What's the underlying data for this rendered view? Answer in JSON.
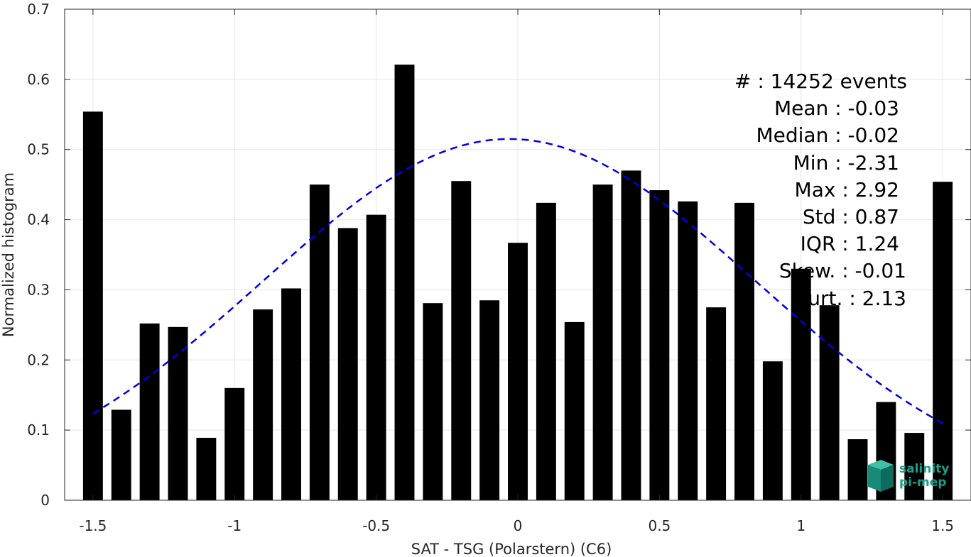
{
  "chart_data": {
    "type": "bar",
    "xlabel": "SAT - TSG (Polarstern) (C6)",
    "ylabel": "Normalized histogram",
    "xlim": [
      -1.6,
      1.6
    ],
    "ylim": [
      0,
      0.7
    ],
    "x_ticks": [
      -1.5,
      -1,
      -0.5,
      0,
      0.5,
      1,
      1.5
    ],
    "x_tick_labels": [
      "-1.5",
      "-1",
      "-0.5",
      "0",
      "0.5",
      "1",
      "1.5"
    ],
    "y_ticks": [
      0,
      0.1,
      0.2,
      0.3,
      0.4,
      0.5,
      0.6,
      0.7
    ],
    "y_tick_labels": [
      "0",
      "0.1",
      "0.2",
      "0.3",
      "0.4",
      "0.5",
      "0.6",
      "0.7"
    ],
    "grid": true,
    "bar_color": "#000000",
    "bar_width": 0.07,
    "x": [
      -1.5,
      -1.4,
      -1.3,
      -1.2,
      -1.1,
      -1.0,
      -0.9,
      -0.8,
      -0.7,
      -0.6,
      -0.5,
      -0.4,
      -0.3,
      -0.2,
      -0.1,
      0.0,
      0.1,
      0.2,
      0.3,
      0.4,
      0.5,
      0.6,
      0.7,
      0.8,
      0.9,
      1.0,
      1.1,
      1.2,
      1.3,
      1.4,
      1.5
    ],
    "values": [
      0.554,
      0.129,
      0.252,
      0.247,
      0.089,
      0.16,
      0.272,
      0.302,
      0.45,
      0.388,
      0.407,
      0.621,
      0.281,
      0.455,
      0.285,
      0.367,
      0.424,
      0.254,
      0.45,
      0.47,
      0.442,
      0.426,
      0.275,
      0.424,
      0.198,
      0.33,
      0.278,
      0.087,
      0.14,
      0.096,
      0.454
    ],
    "fit_curve": {
      "style": "dashed",
      "color": "#0000e6",
      "mean": -0.03,
      "std": 0.87,
      "amplitude": 0.515,
      "x_range": [
        -1.5,
        1.5
      ]
    }
  },
  "stats": {
    "lines": [
      "#  : 14252 events",
      "Mean : -0.03",
      "Median : -0.02",
      "Min : -2.31",
      "Max : 2.92",
      "Std : 0.87",
      "IQR : 1.24",
      "Skew. : -0.01",
      "Kurt. : 2.13"
    ]
  },
  "logo": {
    "line1": "salinity",
    "line2": "pi-mep",
    "color": "#1a9e8a"
  }
}
